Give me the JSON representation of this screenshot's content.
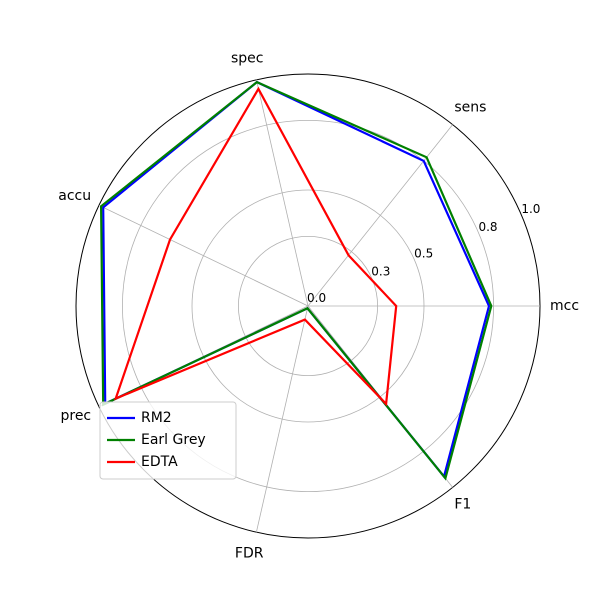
{
  "chart_data": {
    "type": "radar",
    "axes": [
      "mcc",
      "sens",
      "spec",
      "accu",
      "prec",
      "FDR",
      "F1"
    ],
    "rlim": [
      0,
      1.0
    ],
    "r_ticks": [
      0.0,
      0.3,
      0.5,
      0.8,
      1.0
    ],
    "r_tick_labels": [
      "0.0",
      "0.3",
      "0.5",
      "0.8",
      "1.0"
    ],
    "grid": true,
    "legend_position": "lower-left",
    "series": [
      {
        "name": "RM2",
        "color": "#0000ff",
        "values": [
          0.78,
          0.8,
          0.99,
          0.98,
          0.97,
          0.01,
          0.94
        ]
      },
      {
        "name": "Earl Grey",
        "color": "#008000",
        "values": [
          0.79,
          0.82,
          0.99,
          0.99,
          0.98,
          0.01,
          0.95
        ]
      },
      {
        "name": "EDTA",
        "color": "#ff0000",
        "values": [
          0.38,
          0.28,
          0.96,
          0.66,
          0.92,
          0.06,
          0.54
        ]
      }
    ]
  }
}
